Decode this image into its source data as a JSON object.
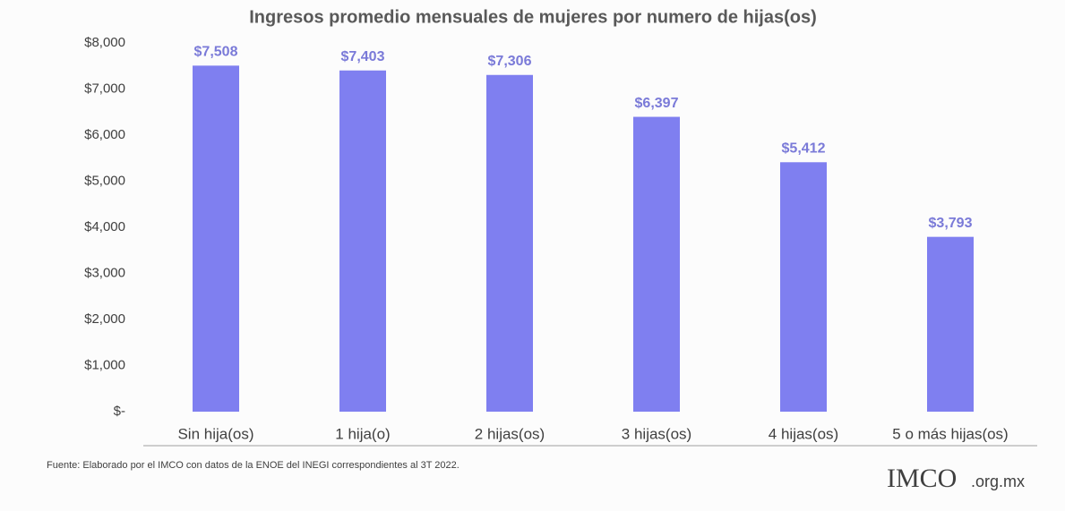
{
  "chart_data": {
    "type": "bar",
    "title": "Ingresos promedio mensuales de mujeres por numero de hijas(os)",
    "categories": [
      "Sin hija(os)",
      "1 hija(o)",
      "2 hijas(os)",
      "3 hijas(os)",
      "4 hijas(os)",
      "5 o más hijas(os)"
    ],
    "values": [
      7508,
      7403,
      7306,
      6397,
      5412,
      3793
    ],
    "value_labels": [
      "$7,508",
      "$7,403",
      "$7,306",
      "$6,397",
      "$5,412",
      "$3,793"
    ],
    "color": "#7f7ff0",
    "ylim": [
      0,
      8000
    ],
    "yticks": [
      {
        "value": 0,
        "label": "$-"
      },
      {
        "value": 1000,
        "label": "$1,000"
      },
      {
        "value": 2000,
        "label": "$2,000"
      },
      {
        "value": 3000,
        "label": "$3,000"
      },
      {
        "value": 4000,
        "label": "$4,000"
      },
      {
        "value": 5000,
        "label": "$5,000"
      },
      {
        "value": 6000,
        "label": "$6,000"
      },
      {
        "value": 7000,
        "label": "$7,000"
      },
      {
        "value": 8000,
        "label": "$8,000"
      }
    ],
    "grid": false,
    "source": "Fuente: Elaborado por el IMCO con datos de la ENOE del INEGI correspondientes al 3T 2022.",
    "logo": "IMCO",
    "logo_suffix": ".org.mx"
  }
}
